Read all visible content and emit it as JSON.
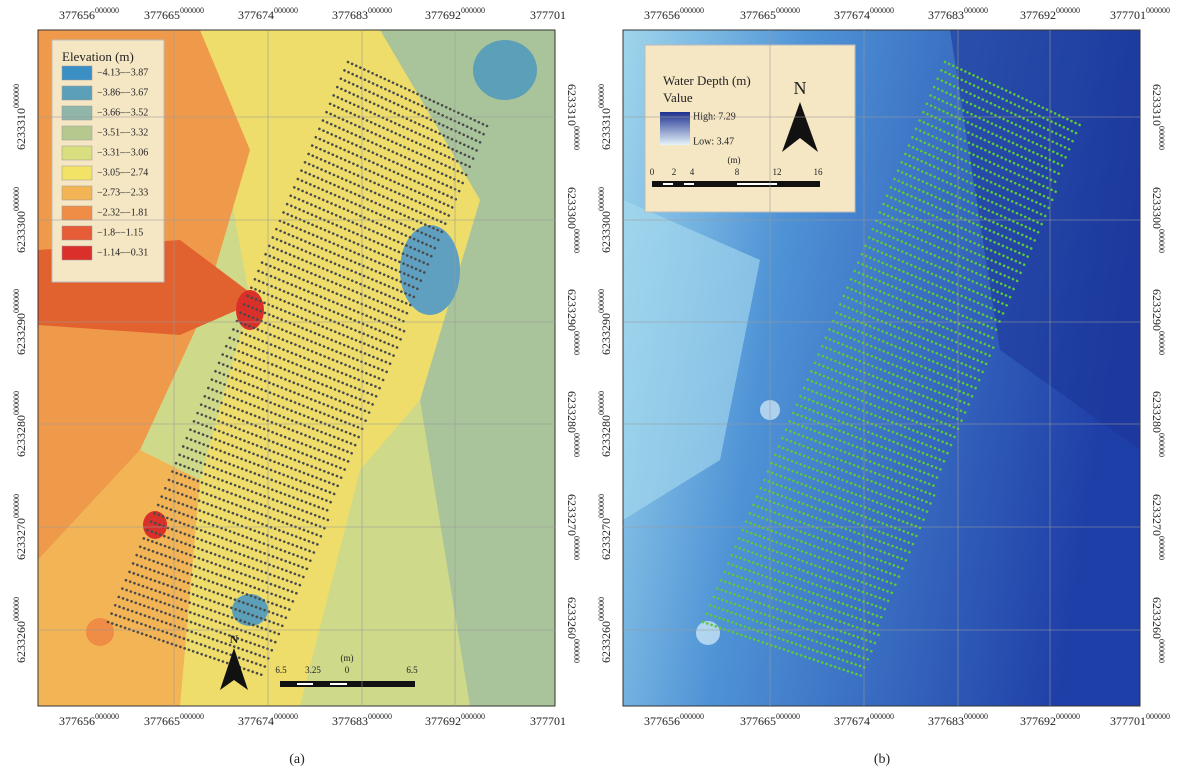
{
  "panels": [
    {
      "x_labels": [
        {
          "main": "377656",
          "sup": "000000"
        },
        {
          "main": "377665",
          "sup": "000000"
        },
        {
          "main": "377674",
          "sup": "000000"
        },
        {
          "main": "377683",
          "sup": "000000"
        },
        {
          "main": "377692",
          "sup": "000000"
        },
        {
          "main": "377701"
        }
      ],
      "y_labels": [
        {
          "main": "6233310",
          "sup": "000000"
        },
        {
          "main": "6233300",
          "sup": "000000"
        },
        {
          "main": "6233290",
          "sup": "000000"
        },
        {
          "main": "6233280",
          "sup": "000000"
        },
        {
          "main": "6233270",
          "sup": "000000"
        },
        {
          "main": "6233260",
          "sup": "000000"
        }
      ],
      "legend": {
        "title": "Elevation (m)",
        "classes": [
          {
            "label": "−4.13–−3.87",
            "color": "#3a8fc4"
          },
          {
            "label": "−3.86–−3.67",
            "color": "#5c9fb8"
          },
          {
            "label": "−3.66–−3.52",
            "color": "#8fb6a8"
          },
          {
            "label": "−3.51–−3.32",
            "color": "#b5c98f"
          },
          {
            "label": "−3.31–−3.06",
            "color": "#d9de7e"
          },
          {
            "label": "−3.05–−2.74",
            "color": "#f2e265"
          },
          {
            "label": "−2.73–−2.33",
            "color": "#f3b455"
          },
          {
            "label": "−2.32–−1.81",
            "color": "#ef8c45"
          },
          {
            "label": "−1.8–−1.15",
            "color": "#e65c36"
          },
          {
            "label": "−1.14–−0.31",
            "color": "#d9302a"
          }
        ]
      },
      "scale": {
        "unit": "(m)",
        "labels": [
          "6.5",
          "3.25",
          "0",
          "6.5"
        ]
      },
      "north": "N",
      "caption": "(a)"
    },
    {
      "x_labels": [
        {
          "main": "377656",
          "sup": "000000"
        },
        {
          "main": "377665",
          "sup": "000000"
        },
        {
          "main": "377674",
          "sup": "000000"
        },
        {
          "main": "377683",
          "sup": "000000"
        },
        {
          "main": "377692",
          "sup": "000000"
        },
        {
          "main": "377701",
          "sup": "000000"
        }
      ],
      "y_labels": [
        {
          "main": "6233310",
          "sup": "000000"
        },
        {
          "main": "6233300",
          "sup": "000000"
        },
        {
          "main": "6233290",
          "sup": "000000"
        },
        {
          "main": "6233280",
          "sup": "000000"
        },
        {
          "main": "6233270",
          "sup": "000000"
        },
        {
          "main": "6233260",
          "sup": "000000"
        }
      ],
      "legend": {
        "title": "Water Depth (m)",
        "subtitle": "Value",
        "high": "High: 7.29",
        "low": "Low: 3.47"
      },
      "scale": {
        "unit": "(m)",
        "labels": [
          "0",
          "2",
          "4",
          "8",
          "12",
          "16"
        ]
      },
      "north": "N",
      "caption": "(b)"
    }
  ]
}
